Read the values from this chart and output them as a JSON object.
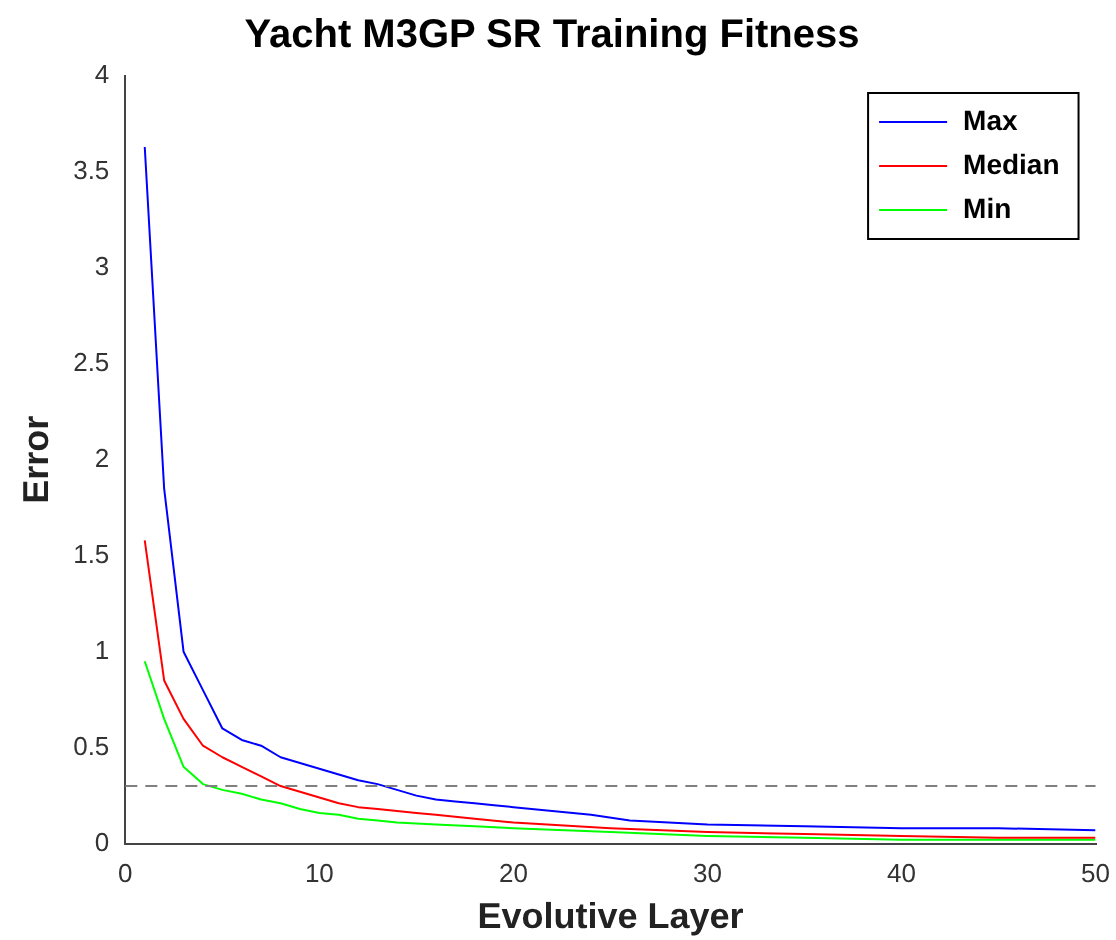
{
  "chart_data": {
    "type": "line",
    "title": "Yacht M3GP SR Training Fitness",
    "xlabel": "Evolutive Layer",
    "ylabel": "Error",
    "xlim": [
      0,
      50
    ],
    "xticks": [
      0,
      10,
      20,
      30,
      40,
      50
    ],
    "ylim": [
      0,
      4
    ],
    "yticks": [
      0,
      0.5,
      1,
      1.5,
      2,
      2.5,
      3,
      3.5,
      4
    ],
    "grid": false,
    "legend": "top right",
    "marker": "none",
    "line_style": "solid",
    "ref_lines": [
      {
        "axis": "y",
        "value": 0.3,
        "color": "#808080",
        "line_style": "dashed"
      }
    ],
    "series": [
      {
        "name": "Max",
        "color": "#0000ff",
        "x": [
          1,
          2,
          3,
          4,
          5,
          6,
          7,
          8,
          9,
          10,
          11,
          12,
          13,
          14,
          15,
          16,
          17,
          18,
          19,
          20,
          22,
          24,
          26,
          28,
          30,
          35,
          40,
          45,
          50
        ],
        "values": [
          3.63,
          1.85,
          1.0,
          0.8,
          0.6,
          0.54,
          0.51,
          0.45,
          0.42,
          0.39,
          0.36,
          0.33,
          0.31,
          0.28,
          0.25,
          0.23,
          0.22,
          0.21,
          0.2,
          0.19,
          0.17,
          0.15,
          0.12,
          0.11,
          0.1,
          0.09,
          0.08,
          0.08,
          0.07
        ]
      },
      {
        "name": "Median",
        "color": "#ff0000",
        "x": [
          1,
          2,
          3,
          4,
          5,
          6,
          7,
          8,
          9,
          10,
          11,
          12,
          13,
          14,
          15,
          16,
          18,
          20,
          25,
          30,
          35,
          40,
          45,
          50
        ],
        "values": [
          1.58,
          0.85,
          0.65,
          0.51,
          0.45,
          0.4,
          0.35,
          0.3,
          0.27,
          0.24,
          0.21,
          0.19,
          0.18,
          0.17,
          0.16,
          0.15,
          0.13,
          0.11,
          0.08,
          0.06,
          0.05,
          0.04,
          0.03,
          0.03
        ]
      },
      {
        "name": "Min",
        "color": "#00ff00",
        "x": [
          1,
          2,
          3,
          4,
          5,
          6,
          7,
          8,
          9,
          10,
          11,
          12,
          13,
          14,
          16,
          18,
          20,
          25,
          30,
          35,
          40,
          45,
          50
        ],
        "values": [
          0.95,
          0.65,
          0.4,
          0.31,
          0.28,
          0.26,
          0.23,
          0.21,
          0.18,
          0.16,
          0.15,
          0.13,
          0.12,
          0.11,
          0.1,
          0.09,
          0.08,
          0.06,
          0.04,
          0.03,
          0.02,
          0.02,
          0.02
        ]
      }
    ]
  }
}
